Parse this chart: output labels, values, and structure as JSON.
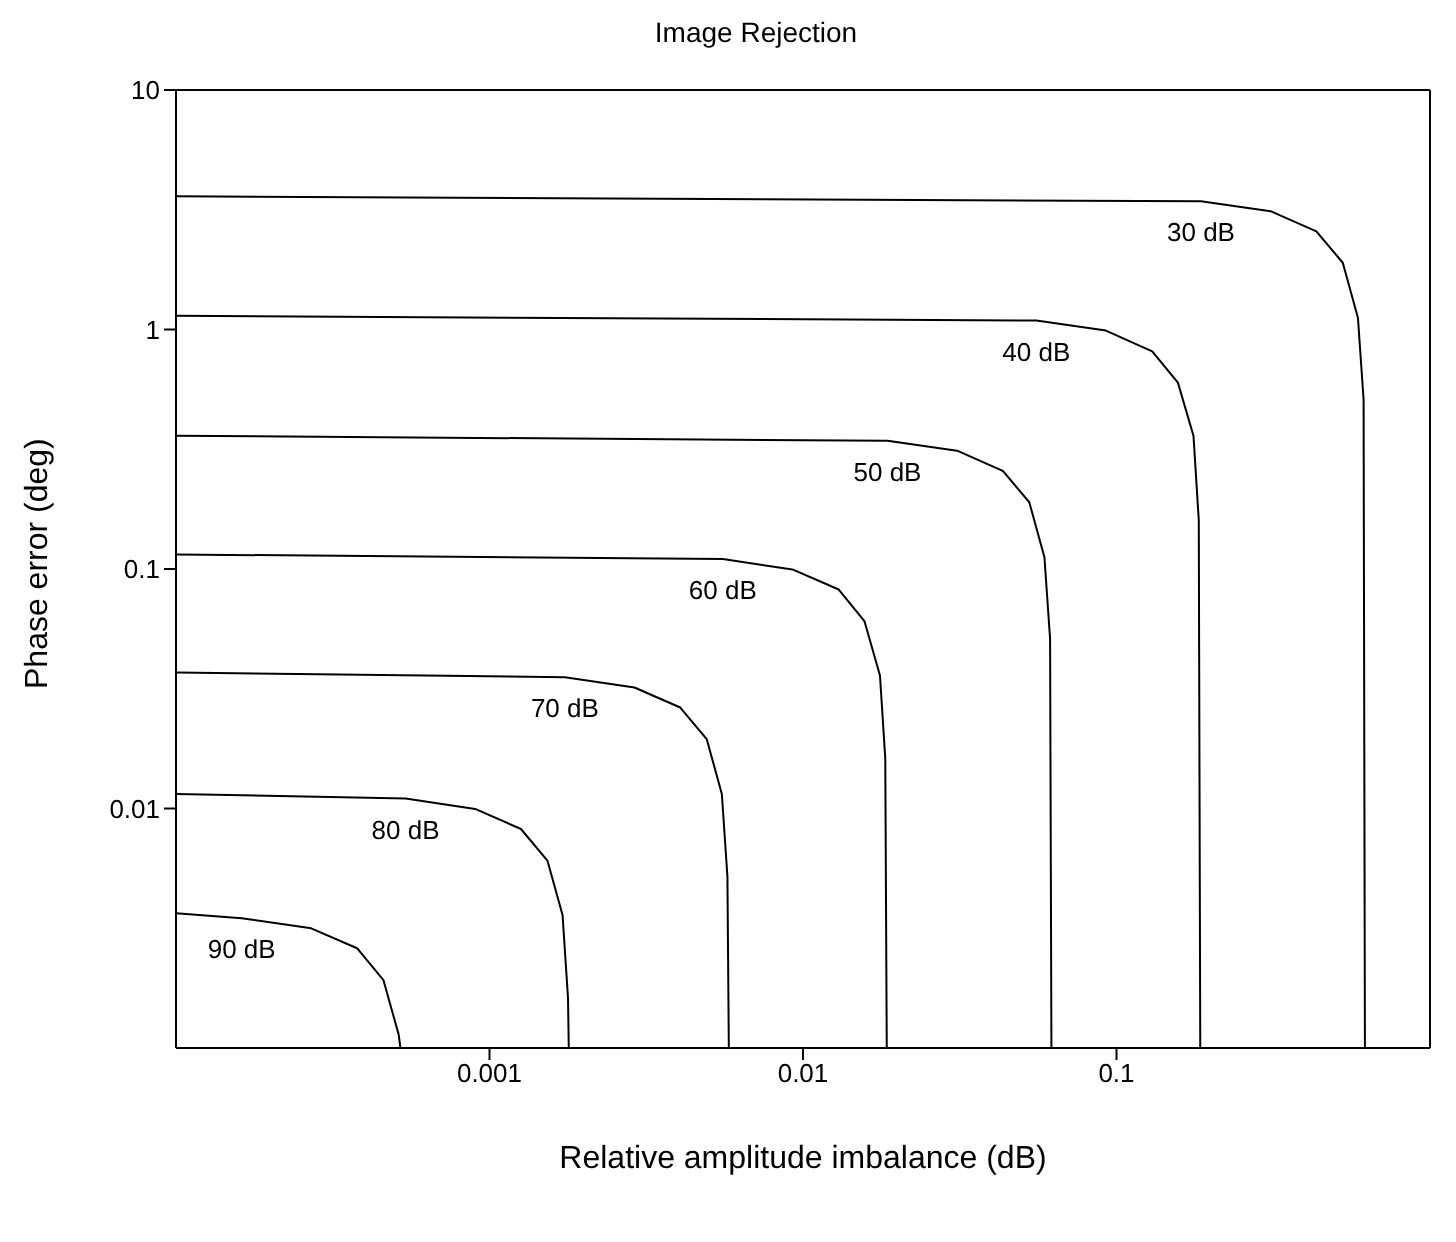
{
  "chart_data": {
    "type": "line",
    "title": "Image Rejection",
    "xlabel": "Relative amplitude imbalance (dB)",
    "ylabel": "Phase error (deg)",
    "log": "xy",
    "xlim": [
      0.0001,
      1
    ],
    "xticks": [
      0.001,
      0.01,
      0.1
    ],
    "ylim": [
      0.001,
      10
    ],
    "yticks": [
      0.01,
      0.1,
      1,
      10
    ],
    "grid": false,
    "legend": false,
    "marker": "none",
    "line_style": "solid",
    "series": [
      {
        "name": "30 dB",
        "color": "#000000",
        "x": [
          0.0001,
          0.186,
          0.31,
          0.434,
          0.527,
          0.589,
          0.614,
          0.62
        ],
        "values": [
          3.6,
          3.43,
          3.12,
          2.57,
          1.9,
          1.12,
          0.51,
          0.001
        ]
      },
      {
        "name": "40 dB",
        "color": "#000000",
        "x": [
          0.0001,
          0.0555,
          0.0925,
          0.13,
          0.157,
          0.176,
          0.183,
          0.185
        ],
        "values": [
          1.14,
          1.09,
          0.99,
          0.81,
          0.6,
          0.36,
          0.16,
          0.001
        ]
      },
      {
        "name": "50 dB",
        "color": "#000000",
        "x": [
          0.0001,
          0.0186,
          0.031,
          0.0434,
          0.0527,
          0.0589,
          0.0614,
          0.062
        ],
        "values": [
          0.36,
          0.343,
          0.312,
          0.257,
          0.19,
          0.112,
          0.051,
          0.001
        ]
      },
      {
        "name": "60 dB",
        "color": "#000000",
        "x": [
          0.0001,
          0.00555,
          0.00925,
          0.013,
          0.0157,
          0.0176,
          0.0183,
          0.0185
        ],
        "values": [
          0.115,
          0.11,
          0.0996,
          0.0821,
          0.0606,
          0.0359,
          0.0162,
          0.001
        ]
      },
      {
        "name": "70 dB",
        "color": "#000000",
        "x": [
          0.0001,
          0.00174,
          0.0029,
          0.00406,
          0.00493,
          0.00551,
          0.00574,
          0.0058
        ],
        "values": [
          0.037,
          0.0353,
          0.032,
          0.0264,
          0.0195,
          0.0115,
          0.0052,
          0.001
        ]
      },
      {
        "name": "80 dB",
        "color": "#000000",
        "x": [
          0.0001,
          0.00054,
          0.0009,
          0.00126,
          0.00153,
          0.00171,
          0.00178,
          0.00179
        ],
        "values": [
          0.0115,
          0.011,
          0.00996,
          0.00821,
          0.00606,
          0.00359,
          0.00162,
          0.001
        ]
      },
      {
        "name": "90 dB",
        "color": "#000000",
        "x": [
          0.0001,
          0.000162,
          0.00027,
          0.000378,
          0.000459,
          0.000513,
          0.00052
        ],
        "values": [
          0.00365,
          0.00348,
          0.00316,
          0.00261,
          0.00192,
          0.00114,
          0.001
        ]
      }
    ]
  }
}
